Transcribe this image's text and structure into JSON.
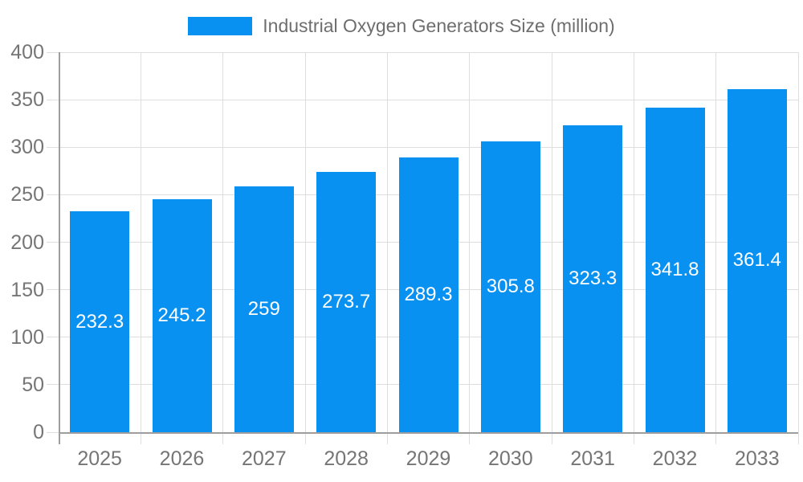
{
  "chart_data": {
    "type": "bar",
    "title": "Industrial Oxygen Generators Size (million)",
    "categories": [
      "2025",
      "2026",
      "2027",
      "2028",
      "2029",
      "2030",
      "2031",
      "2032",
      "2033"
    ],
    "values": [
      232.3,
      245.2,
      259,
      273.7,
      289.3,
      305.8,
      323.3,
      341.8,
      361.4
    ],
    "xlabel": "",
    "ylabel": "",
    "ylim": [
      0,
      400
    ],
    "ytick_step": 50,
    "yticks": [
      0,
      50,
      100,
      150,
      200,
      250,
      300,
      350,
      400
    ],
    "grid": true,
    "legend_position": "top",
    "value_labels": "inside-center",
    "colors": {
      "bar": "#0991f2",
      "grid": "#dedede",
      "axis": "#9e9e9e",
      "tick_label": "#757575",
      "legend_text": "#6e6e6e",
      "value_label": "#ffffff",
      "background": "#ffffff"
    }
  }
}
